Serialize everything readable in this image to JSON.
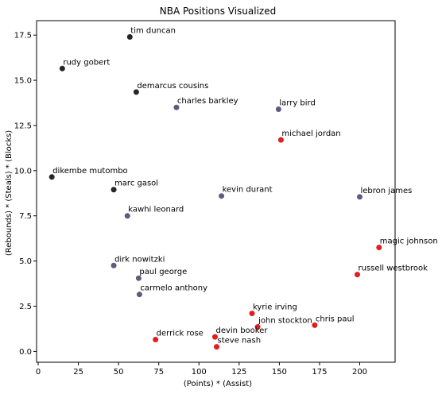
{
  "chart_data": {
    "type": "scatter",
    "title": "NBA Positions Visualized",
    "xlabel": "(Points) * (Assist)",
    "ylabel": "(Rebounds) * (Steals) * (Blocks)",
    "xlim": [
      -1,
      222
    ],
    "ylim": [
      -0.6,
      18.3
    ],
    "xticks": [
      0,
      25,
      50,
      75,
      100,
      125,
      150,
      175,
      200
    ],
    "yticks": [
      0.0,
      2.5,
      5.0,
      7.5,
      10.0,
      12.5,
      15.0,
      17.5
    ],
    "ytick_labels": [
      "0.0",
      "2.5",
      "5.0",
      "7.5",
      "10.0",
      "12.5",
      "15.0",
      "17.5"
    ],
    "group_colors": {
      "big": "#262626",
      "forward": "#5f5b7e",
      "guard": "#e02020"
    },
    "points": [
      {
        "label": "tim duncan",
        "x": 57,
        "y": 17.4,
        "group": "big"
      },
      {
        "label": "rudy gobert",
        "x": 15,
        "y": 15.65,
        "group": "big"
      },
      {
        "label": "demarcus cousins",
        "x": 61,
        "y": 14.35,
        "group": "big"
      },
      {
        "label": "dikembe mutombo",
        "x": 8.5,
        "y": 9.65,
        "group": "big"
      },
      {
        "label": "marc gasol",
        "x": 47,
        "y": 8.95,
        "group": "big"
      },
      {
        "label": "charles barkley",
        "x": 86,
        "y": 13.5,
        "group": "forward"
      },
      {
        "label": "larry bird",
        "x": 149.5,
        "y": 13.4,
        "group": "forward"
      },
      {
        "label": "kevin durant",
        "x": 114,
        "y": 8.6,
        "group": "forward"
      },
      {
        "label": "lebron james",
        "x": 200,
        "y": 8.55,
        "group": "forward"
      },
      {
        "label": "kawhi leonard",
        "x": 55.5,
        "y": 7.5,
        "group": "forward"
      },
      {
        "label": "dirk nowitzki",
        "x": 47,
        "y": 4.75,
        "group": "forward"
      },
      {
        "label": "paul george",
        "x": 62.5,
        "y": 4.05,
        "group": "forward"
      },
      {
        "label": "carmelo anthony",
        "x": 63,
        "y": 3.15,
        "group": "forward"
      },
      {
        "label": "michael jordan",
        "x": 151,
        "y": 11.7,
        "group": "guard"
      },
      {
        "label": "magic johnson",
        "x": 212,
        "y": 5.75,
        "group": "guard"
      },
      {
        "label": "russell westbrook",
        "x": 198.5,
        "y": 4.25,
        "group": "guard"
      },
      {
        "label": "kyrie irving",
        "x": 133,
        "y": 2.1,
        "group": "guard"
      },
      {
        "label": "john stockton",
        "x": 136.5,
        "y": 1.35,
        "group": "guard"
      },
      {
        "label": "chris paul",
        "x": 172,
        "y": 1.45,
        "group": "guard"
      },
      {
        "label": "derrick rose",
        "x": 73,
        "y": 0.65,
        "group": "guard"
      },
      {
        "label": "devin booker",
        "x": 110,
        "y": 0.8,
        "group": "guard"
      },
      {
        "label": "steve nash",
        "x": 111,
        "y": 0.25,
        "group": "guard"
      }
    ]
  }
}
